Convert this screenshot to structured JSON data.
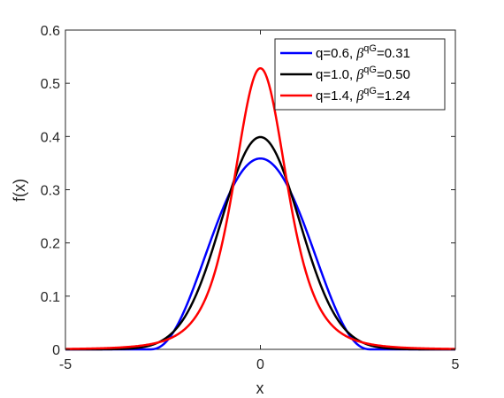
{
  "chart_data": {
    "type": "line",
    "xlabel": "x",
    "ylabel": "f(x)",
    "xlim": [
      -5,
      5
    ],
    "ylim": [
      0,
      0.6
    ],
    "xticks": [
      "-5",
      "0",
      "5"
    ],
    "yticks": [
      "0",
      "0.1",
      "0.2",
      "0.3",
      "0.4",
      "0.5",
      "0.6"
    ],
    "grid": false,
    "legend_position": "top-right",
    "series": [
      {
        "name": "q=0.6, βqG=0.31",
        "q": 0.6,
        "beta": 0.31,
        "q_label": "q=0.6, ",
        "beta_symbol": "β",
        "beta_sup": "qG",
        "beta_value_label": "=0.31",
        "color": "#0000ff"
      },
      {
        "name": "q=1.0, βqG=0.50",
        "q": 1.0,
        "beta": 0.5,
        "q_label": "q=1.0, ",
        "beta_symbol": "β",
        "beta_sup": "qG",
        "beta_value_label": "=0.50",
        "color": "#000000"
      },
      {
        "name": "q=1.4, βqG=1.24",
        "q": 1.4,
        "beta": 1.24,
        "q_label": "q=1.4, ",
        "beta_symbol": "β",
        "beta_sup": "qG",
        "beta_value_label": "=1.24",
        "color": "#ff0000"
      }
    ]
  }
}
